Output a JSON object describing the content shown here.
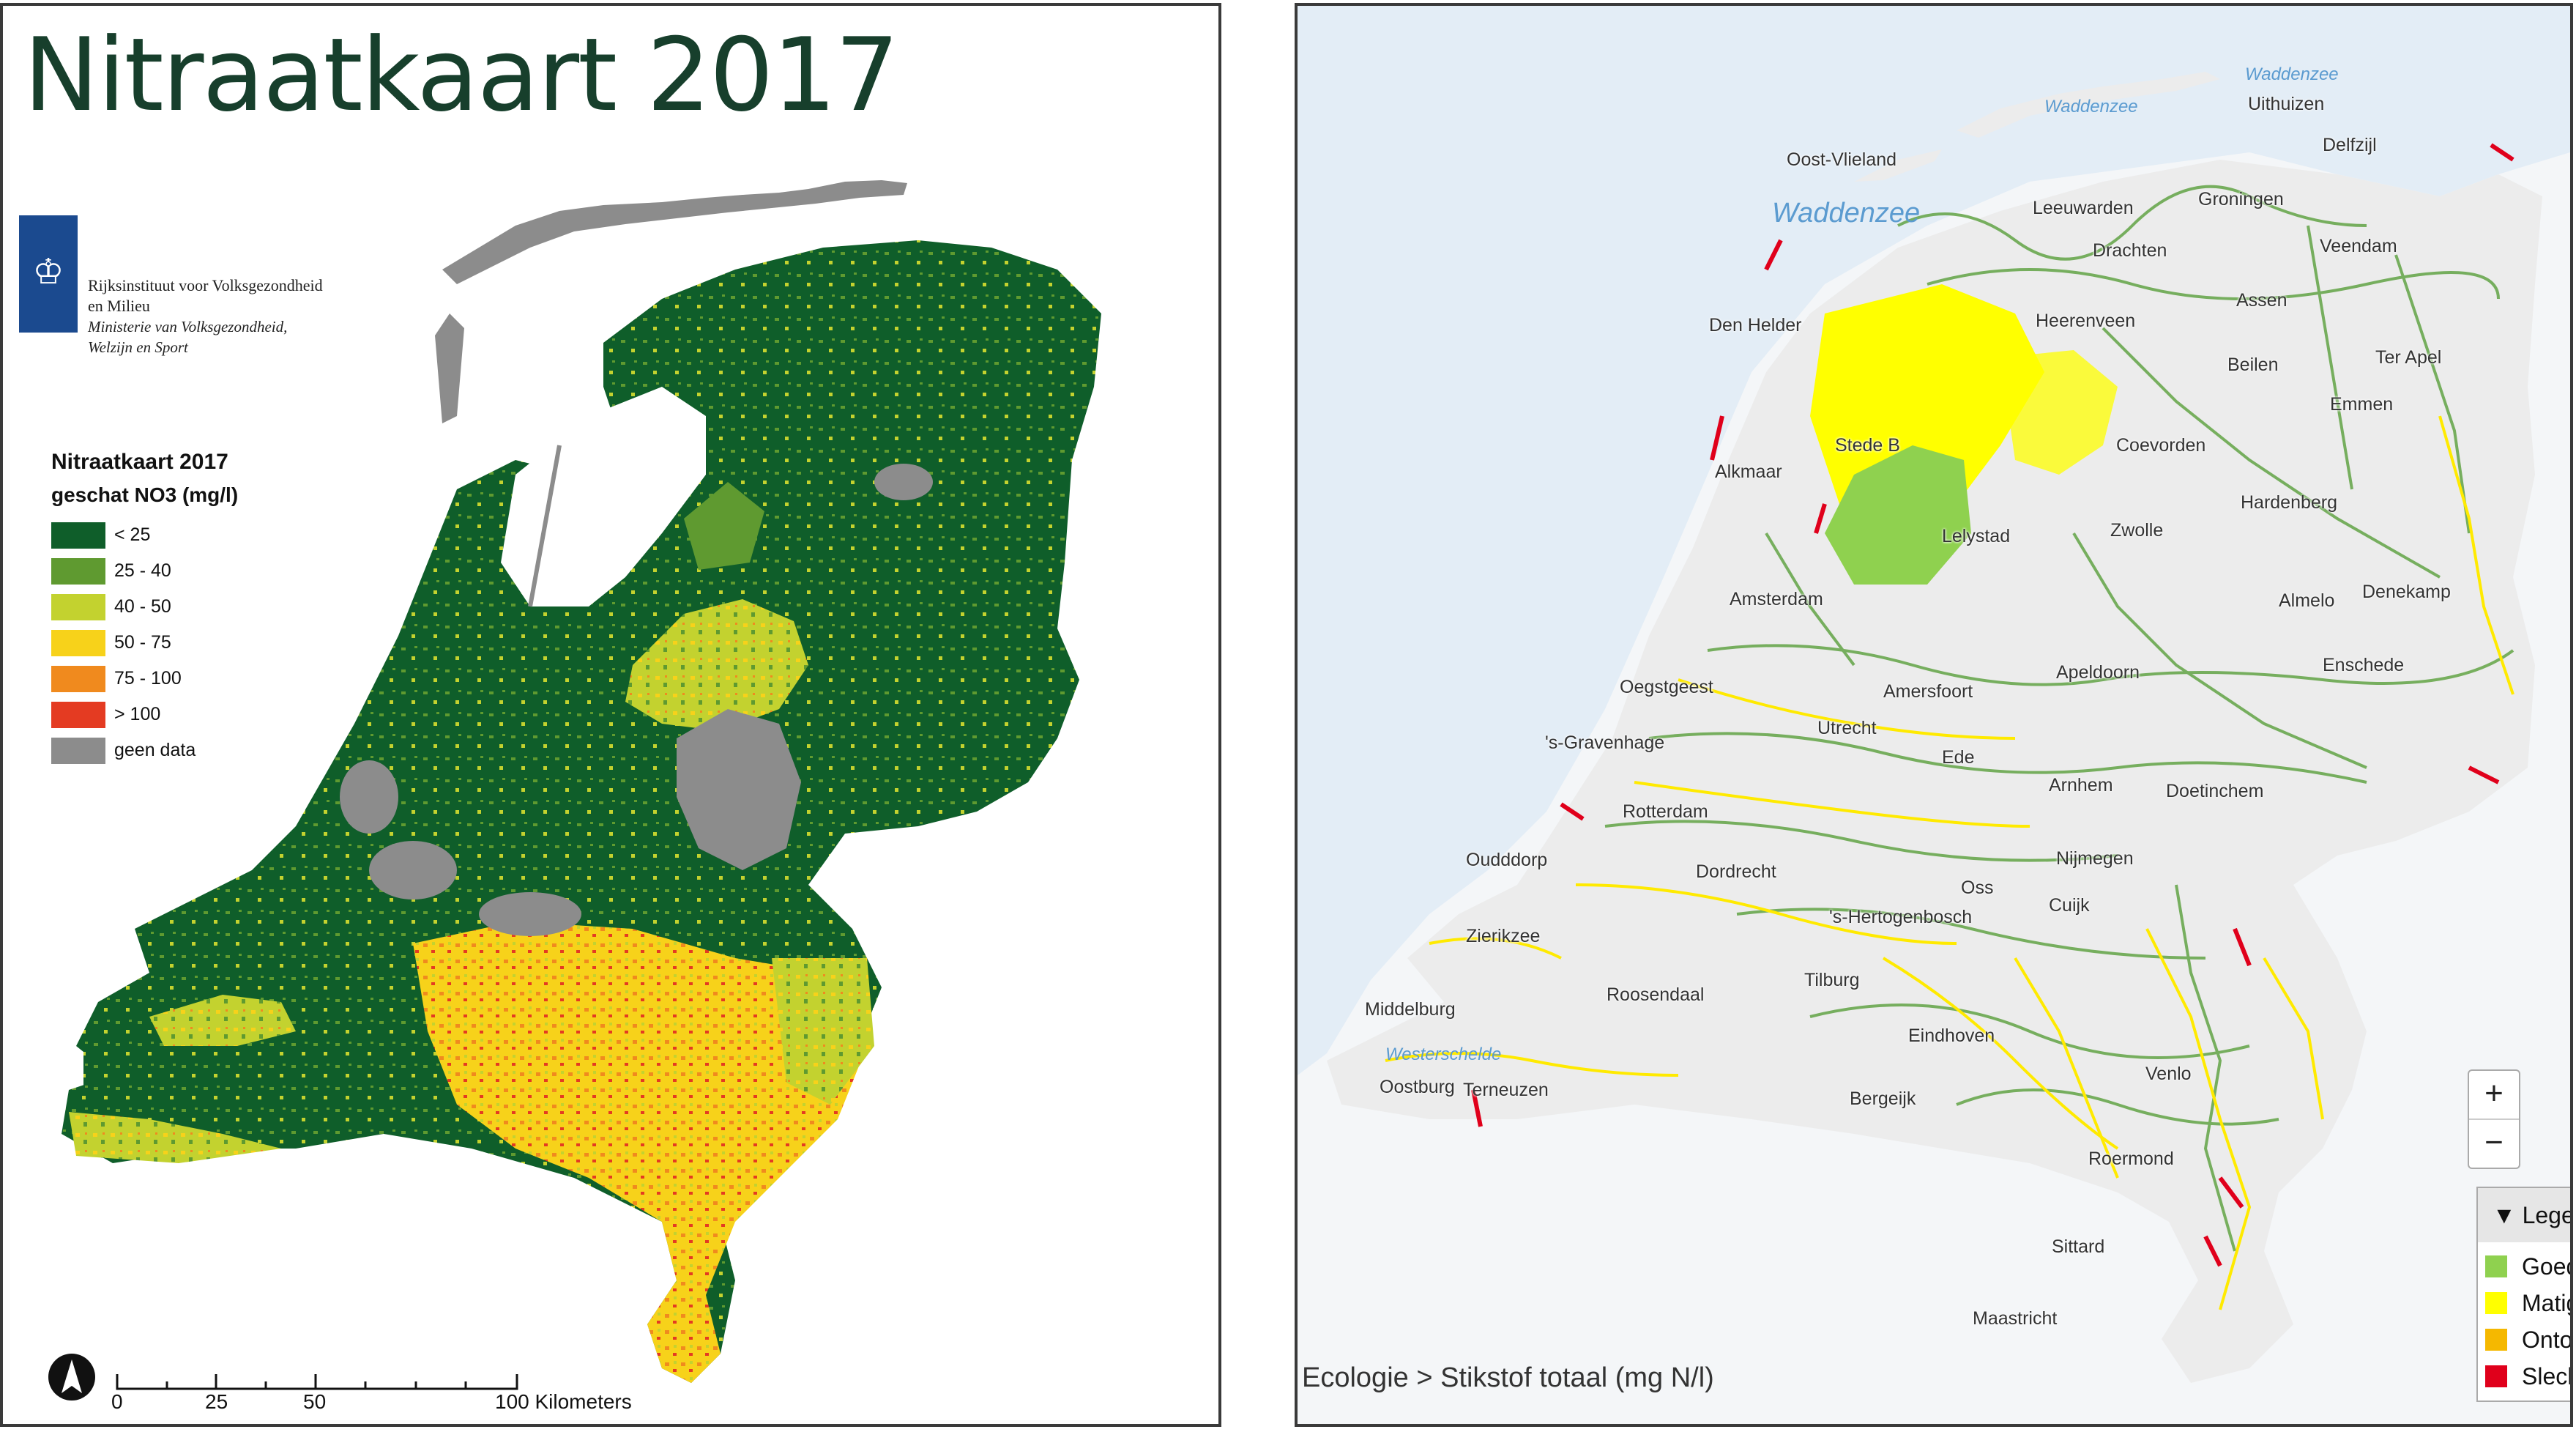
{
  "left_map": {
    "title": "Nitraatkaart 2017",
    "organization": {
      "line1": "Rijksinstituut voor Volksgezondheid",
      "line2": "en Milieu",
      "line3": "Ministerie van Volksgezondheid,",
      "line4": "Welzijn en Sport"
    },
    "legend": {
      "title": "Nitraatkaart 2017",
      "subtitle": "geschat NO3 (mg/l)",
      "items": [
        {
          "label": "< 25",
          "color": "#0f5e2a"
        },
        {
          "label": "25 - 40",
          "color": "#5f9a30"
        },
        {
          "label": "40 - 50",
          "color": "#c3d22f"
        },
        {
          "label": "50 - 75",
          "color": "#f7d21a"
        },
        {
          "label": "75 - 100",
          "color": "#f08a1e"
        },
        {
          "label": "> 100",
          "color": "#e43b22"
        },
        {
          "label": "geen data",
          "color": "#8c8c8c"
        }
      ]
    },
    "scale": {
      "labels": [
        "0",
        "25",
        "50",
        "100 Kilometers"
      ]
    }
  },
  "right_map": {
    "places": [
      "Waddenzee",
      "Waddenzee",
      "Uithuizen",
      "Oost-Vlieland",
      "Waddenzee",
      "Leeuwarden",
      "Groningen",
      "Delfzijl",
      "Drachten",
      "Veendam",
      "Den Helder",
      "Heerenveen",
      "Assen",
      "Beilen",
      "Ter Apel",
      "Emmen",
      "Stede B",
      "Alkmaar",
      "Lelystad",
      "Zwolle",
      "Coevorden",
      "Hardenberg",
      "Amsterdam",
      "Almelo",
      "Denekamp",
      "Oegstgeest",
      "Amersfoort",
      "Apeldoorn",
      "Enschede",
      "Utrecht",
      "'s-Gravenhage",
      "Ede",
      "Arnhem",
      "Doetinchem",
      "Rotterdam",
      "Oudddorp",
      "Dordrecht",
      "Nijmegen",
      "Oss",
      "'s-Hertogenbosch",
      "Cuijk",
      "Zierikzee",
      "Roosendaal",
      "Tilburg",
      "Middelburg",
      "Eindhoven",
      "Westerschelde",
      "Venlo",
      "Oostburg",
      "Terneuzen",
      "Bergeijk",
      "Roermond",
      "Sittard",
      "Maastricht"
    ],
    "zoom_in": "+",
    "zoom_out": "−",
    "legend": {
      "title": "Legenda",
      "items": [
        {
          "label": "Goed",
          "color": "#8fd14f"
        },
        {
          "label": "Matig",
          "color": "#ffff00"
        },
        {
          "label": "Ontoereikend",
          "color": "#f5b800"
        },
        {
          "label": "Slecht",
          "color": "#e0001b"
        }
      ]
    },
    "breadcrumb": "Ecologie > Stikstof totaal (mg N/l)"
  }
}
